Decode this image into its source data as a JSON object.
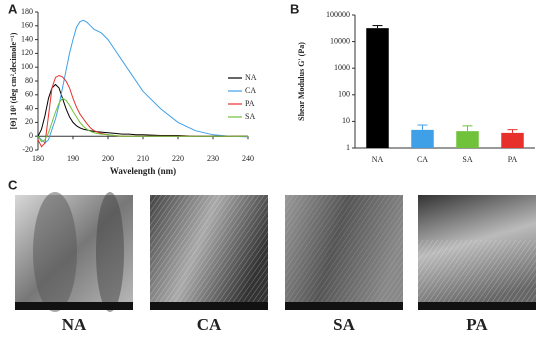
{
  "chart_data": [
    {
      "type": "line",
      "xlabel": "Wavelength (nm)",
      "ylabel": "[Θ] 10³ (deg cm².decimole⁻¹)",
      "x": [
        180,
        181,
        182,
        183,
        184,
        185,
        186,
        187,
        188,
        189,
        190,
        191,
        192,
        193,
        194,
        195,
        196,
        198,
        200,
        202,
        204,
        206,
        208,
        210,
        215,
        220,
        225,
        230,
        235,
        240
      ],
      "series": [
        {
          "name": "NA",
          "color": "#000000",
          "values": [
            0,
            10,
            30,
            55,
            70,
            75,
            70,
            55,
            40,
            28,
            20,
            15,
            12,
            10,
            9,
            8,
            7,
            6,
            5,
            4,
            3,
            3,
            2,
            2,
            1,
            1,
            0,
            0,
            0,
            0
          ]
        },
        {
          "name": "CA",
          "color": "#3fa0e8",
          "values": [
            0,
            -5,
            -10,
            -5,
            10,
            25,
            45,
            70,
            95,
            120,
            140,
            158,
            166,
            168,
            165,
            160,
            155,
            150,
            140,
            125,
            110,
            95,
            80,
            65,
            40,
            20,
            8,
            2,
            0,
            -1
          ]
        },
        {
          "name": "PA",
          "color": "#e8302a",
          "values": [
            -5,
            -15,
            -10,
            30,
            70,
            85,
            88,
            86,
            80,
            70,
            55,
            42,
            32,
            25,
            18,
            12,
            8,
            4,
            2,
            1,
            0,
            0,
            0,
            0,
            0,
            0,
            0,
            0,
            0,
            0
          ]
        },
        {
          "name": "SA",
          "color": "#6fc23a",
          "values": [
            0,
            -8,
            -5,
            5,
            20,
            35,
            48,
            55,
            52,
            45,
            36,
            28,
            20,
            14,
            10,
            7,
            5,
            3,
            2,
            1,
            0,
            0,
            0,
            0,
            0,
            0,
            0,
            0,
            0,
            0
          ]
        }
      ],
      "xlim": [
        180,
        240
      ],
      "xticks": [
        180,
        190,
        200,
        210,
        220,
        230,
        240
      ],
      "ylim": [
        -20,
        180
      ],
      "yticks": [
        -20,
        0,
        20,
        40,
        60,
        80,
        100,
        120,
        140,
        160,
        180
      ]
    },
    {
      "type": "bar",
      "ylabel": "Shear Modulus G' (Pa)",
      "log_scale": true,
      "categories": [
        "NA",
        "CA",
        "SA",
        "PA"
      ],
      "values": [
        32000,
        4.8,
        4.3,
        3.7
      ],
      "errors": [
        8000,
        2.5,
        2.5,
        1.2
      ],
      "colors": [
        "#000000",
        "#3fa0e8",
        "#6fc23a",
        "#e8302a"
      ],
      "ylim": [
        1,
        100000
      ],
      "yticks": [
        1,
        10,
        100,
        1000,
        10000,
        100000
      ]
    }
  ],
  "figure": {
    "panel_labels": [
      "A",
      "B",
      "C"
    ],
    "image_captions": [
      "NA",
      "CA",
      "SA",
      "PA"
    ]
  }
}
